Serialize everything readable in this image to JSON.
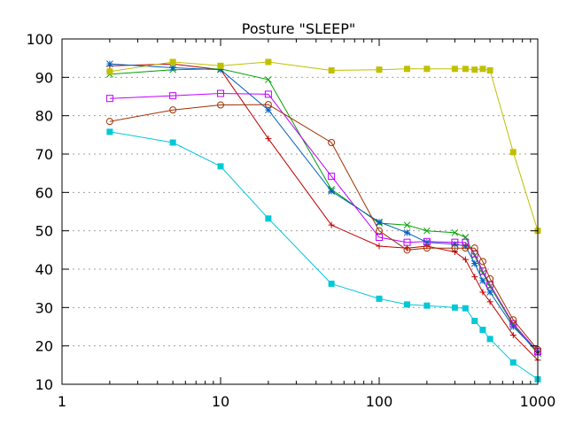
{
  "chart_data": {
    "type": "line",
    "title": "Posture \"SLEEP\"",
    "xscale": "log",
    "xlim": [
      1,
      1000
    ],
    "ylim": [
      10,
      100
    ],
    "xticks": [
      {
        "value": 1,
        "label": "1"
      },
      {
        "value": 10,
        "label": "10"
      },
      {
        "value": 100,
        "label": "100"
      },
      {
        "value": 1000,
        "label": "1000"
      }
    ],
    "yticks": [
      {
        "value": 10,
        "label": "10"
      },
      {
        "value": 20,
        "label": "20"
      },
      {
        "value": 30,
        "label": "30"
      },
      {
        "value": 40,
        "label": "40"
      },
      {
        "value": 50,
        "label": "50"
      },
      {
        "value": 60,
        "label": "60"
      },
      {
        "value": 70,
        "label": "70"
      },
      {
        "value": 80,
        "label": "80"
      },
      {
        "value": 90,
        "label": "90"
      },
      {
        "value": 100,
        "label": "100"
      }
    ],
    "grid": "horizontal-dotted",
    "series": [
      {
        "name": "series-red-plus",
        "color": "#bf0000",
        "marker": "plus",
        "x": [
          2,
          5,
          10,
          20,
          50,
          100,
          150,
          200,
          300,
          350,
          400,
          450,
          500,
          700,
          1000
        ],
        "y": [
          93.0,
          93.5,
          92.0,
          74.0,
          51.5,
          46.0,
          45.5,
          46.0,
          44.5,
          42.5,
          38.0,
          34.0,
          31.5,
          22.8,
          16.3
        ]
      },
      {
        "name": "series-green-x",
        "color": "#00a000",
        "marker": "x",
        "x": [
          2,
          5,
          10,
          20,
          50,
          100,
          150,
          200,
          300,
          350,
          400,
          450,
          500,
          700,
          1000
        ],
        "y": [
          90.8,
          92.0,
          92.2,
          89.4,
          60.8,
          52.0,
          51.5,
          50.0,
          49.5,
          48.3,
          43.5,
          39.0,
          35.5,
          25.5,
          18.0
        ]
      },
      {
        "name": "series-blue-star",
        "color": "#0060c0",
        "marker": "star",
        "x": [
          2,
          5,
          10,
          20,
          50,
          100,
          150,
          200,
          300,
          350,
          400,
          450,
          500,
          700,
          1000
        ],
        "y": [
          93.5,
          92.5,
          92.0,
          81.5,
          60.3,
          52.3,
          49.5,
          47.0,
          46.5,
          46.0,
          41.5,
          37.0,
          34.0,
          25.0,
          18.5
        ]
      },
      {
        "name": "series-purple-square",
        "color": "#c000ff",
        "marker": "open-square",
        "x": [
          2,
          5,
          10,
          20,
          50,
          100,
          150,
          200,
          300,
          350,
          400,
          450,
          500,
          700,
          1000
        ],
        "y": [
          84.5,
          85.2,
          85.8,
          85.6,
          64.2,
          48.3,
          47.0,
          47.2,
          47.0,
          47.0,
          44.0,
          39.5,
          36.0,
          25.8,
          18.5
        ]
      },
      {
        "name": "series-brown-circle",
        "color": "#a03000",
        "marker": "open-circle",
        "x": [
          2,
          5,
          10,
          20,
          50,
          100,
          150,
          200,
          300,
          350,
          400,
          450,
          500,
          700,
          1000
        ],
        "y": [
          78.5,
          81.5,
          82.8,
          82.9,
          73.0,
          50.0,
          45.0,
          45.5,
          45.5,
          45.5,
          45.5,
          42.0,
          37.5,
          26.8,
          19.0
        ]
      },
      {
        "name": "series-olive-filled-square",
        "color": "#c0c000",
        "marker": "filled-square",
        "x": [
          2,
          5,
          10,
          20,
          50,
          100,
          150,
          200,
          300,
          350,
          400,
          450,
          500,
          700,
          1000
        ],
        "y": [
          91.5,
          94.0,
          93.0,
          94.0,
          91.8,
          92.0,
          92.2,
          92.2,
          92.2,
          92.2,
          92.0,
          92.2,
          91.8,
          70.5,
          50.0
        ]
      },
      {
        "name": "series-cyan-filled-square",
        "color": "#00c8d8",
        "marker": "filled-square",
        "x": [
          2,
          5,
          10,
          20,
          50,
          100,
          150,
          200,
          300,
          350,
          400,
          450,
          500,
          700,
          1000
        ],
        "y": [
          75.8,
          73.0,
          66.8,
          53.2,
          36.2,
          32.3,
          30.8,
          30.5,
          30.0,
          29.8,
          26.5,
          24.2,
          21.8,
          15.7,
          11.3
        ]
      }
    ]
  }
}
